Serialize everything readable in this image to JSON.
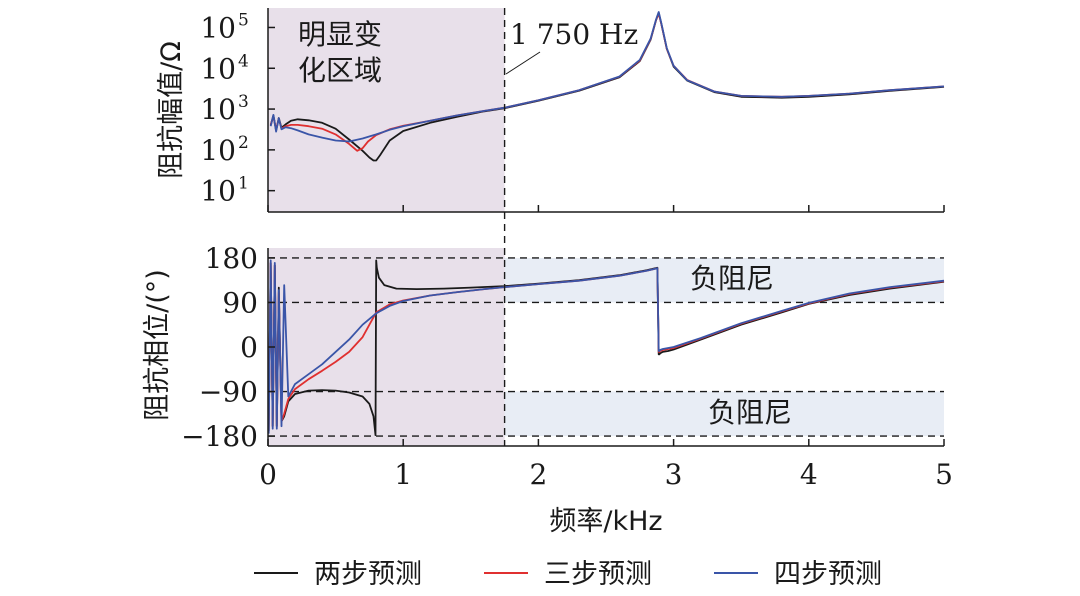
{
  "chart_data": [
    {
      "type": "line",
      "panel": "top",
      "ylabel": "阻抗幅值/Ω",
      "yscale": "log",
      "xlim": [
        0,
        5
      ],
      "ylim": [
        3,
        300000
      ],
      "ytick_values": [
        10,
        100,
        1000,
        10000,
        100000
      ],
      "ytick_labels": [
        [
          "10",
          "1"
        ],
        [
          "10",
          "2"
        ],
        [
          "10",
          "3"
        ],
        [
          "10",
          "4"
        ],
        [
          "10",
          "5"
        ]
      ],
      "shaded_region": {
        "x_range": [
          0,
          1.75
        ],
        "color": "#e8e0ea"
      },
      "region_label": [
        "明显变",
        "化区域"
      ],
      "vline": {
        "x": 1.75,
        "label": "1 750 Hz"
      },
      "series": [
        {
          "name": "两步预测",
          "color": "#1a1a1a",
          "x": [
            0.02,
            0.04,
            0.06,
            0.08,
            0.1,
            0.13,
            0.17,
            0.22,
            0.3,
            0.4,
            0.5,
            0.6,
            0.7,
            0.75,
            0.78,
            0.8,
            0.83,
            0.9,
            1.0,
            1.2,
            1.4,
            1.6,
            1.75,
            2.0,
            2.3,
            2.6,
            2.75,
            2.83,
            2.87,
            2.89,
            2.91,
            2.95,
            3.0,
            3.1,
            3.3,
            3.5,
            3.8,
            4.0,
            4.3,
            4.6,
            5.0
          ],
          "y": [
            400,
            700,
            300,
            600,
            350,
            420,
            520,
            560,
            530,
            460,
            330,
            180,
            95,
            65,
            55,
            55,
            75,
            170,
            290,
            460,
            650,
            880,
            1050,
            1600,
            2800,
            6000,
            15000,
            50000,
            150000,
            230000,
            120000,
            30000,
            11000,
            5000,
            2600,
            2000,
            1900,
            2000,
            2300,
            2800,
            3500
          ]
        },
        {
          "name": "三步预测",
          "color": "#e03030",
          "x": [
            0.02,
            0.04,
            0.06,
            0.08,
            0.1,
            0.13,
            0.17,
            0.22,
            0.3,
            0.4,
            0.5,
            0.6,
            0.66,
            0.7,
            0.74,
            0.8,
            0.9,
            1.0,
            1.2,
            1.4,
            1.6,
            1.75,
            2.0,
            2.3,
            2.6,
            2.75,
            2.83,
            2.87,
            2.89,
            2.91,
            2.95,
            3.0,
            3.1,
            3.3,
            3.5,
            3.8,
            4.0,
            4.3,
            4.6,
            5.0
          ],
          "y": [
            420,
            650,
            320,
            580,
            330,
            380,
            410,
            410,
            380,
            330,
            240,
            140,
            95,
            110,
            160,
            230,
            320,
            390,
            520,
            700,
            900,
            1080,
            1650,
            2900,
            6200,
            15500,
            52000,
            150000,
            220000,
            120000,
            30000,
            11500,
            5200,
            2700,
            2100,
            2000,
            2100,
            2400,
            2900,
            3600
          ]
        },
        {
          "name": "四步预测",
          "color": "#3a55a8",
          "x": [
            0.02,
            0.04,
            0.06,
            0.08,
            0.1,
            0.13,
            0.17,
            0.22,
            0.3,
            0.4,
            0.5,
            0.6,
            0.7,
            0.8,
            0.9,
            1.0,
            1.2,
            1.4,
            1.6,
            1.75,
            2.0,
            2.3,
            2.6,
            2.75,
            2.83,
            2.87,
            2.89,
            2.91,
            2.95,
            3.0,
            3.1,
            3.3,
            3.5,
            3.8,
            4.0,
            4.3,
            4.6,
            5.0
          ],
          "y": [
            380,
            720,
            280,
            600,
            320,
            360,
            340,
            300,
            240,
            200,
            170,
            160,
            190,
            240,
            310,
            380,
            520,
            700,
            900,
            1080,
            1650,
            2900,
            6300,
            16000,
            53000,
            155000,
            240000,
            125000,
            31000,
            11500,
            5100,
            2700,
            2100,
            2000,
            2100,
            2400,
            2900,
            3600
          ]
        }
      ]
    },
    {
      "type": "line",
      "panel": "bottom",
      "xlabel": "频率/kHz",
      "ylabel": "阻抗相位/(°)",
      "xlim": [
        0,
        5
      ],
      "ylim": [
        -200,
        200
      ],
      "xticks": [
        0,
        1,
        2,
        3,
        4,
        5
      ],
      "yticks": [
        180,
        90,
        0,
        -90,
        -180
      ],
      "ytick_labels": [
        "180",
        "90",
        "0",
        "−90",
        "−180"
      ],
      "shaded_region": {
        "x_range": [
          0,
          1.75
        ],
        "color": "#e8e0ea"
      },
      "negative_damping_bands": [
        {
          "y_range": [
            90,
            180
          ],
          "label": "负阻尼",
          "color": "#e8edf5"
        },
        {
          "y_range": [
            -180,
            -90
          ],
          "label": "负阻尼",
          "color": "#e8edf5"
        }
      ],
      "hlines": [
        180,
        90,
        -90,
        -180
      ],
      "vline": {
        "x": 1.75
      },
      "series": [
        {
          "name": "两步预测",
          "color": "#1a1a1a",
          "x": [
            0.005,
            0.02,
            0.035,
            0.05,
            0.065,
            0.08,
            0.1,
            0.12,
            0.15,
            0.2,
            0.3,
            0.4,
            0.5,
            0.6,
            0.7,
            0.75,
            0.78,
            0.795,
            0.8,
            0.805,
            0.82,
            0.86,
            0.95,
            1.1,
            1.3,
            1.5,
            1.75,
            2.0,
            2.3,
            2.6,
            2.8,
            2.88,
            2.89,
            2.895,
            2.9,
            2.92,
            2.96,
            3.0,
            3.2,
            3.5,
            3.8,
            4.0,
            4.3,
            4.6,
            5.0
          ],
          "y": [
            -170,
            170,
            -160,
            165,
            -160,
            120,
            -150,
            -140,
            -110,
            -95,
            -88,
            -87,
            -88,
            -92,
            -100,
            -115,
            -140,
            -178,
            175,
            160,
            140,
            125,
            118,
            117,
            118,
            120,
            123,
            128,
            135,
            145,
            155,
            160,
            -15,
            -15,
            -13,
            -10,
            -8,
            -5,
            15,
            45,
            70,
            87,
            105,
            118,
            132
          ]
        },
        {
          "name": "三步预测",
          "color": "#e03030",
          "x": [
            0.005,
            0.02,
            0.035,
            0.05,
            0.065,
            0.08,
            0.1,
            0.12,
            0.15,
            0.2,
            0.3,
            0.4,
            0.5,
            0.6,
            0.7,
            0.75,
            0.8,
            0.9,
            1.0,
            1.2,
            1.4,
            1.6,
            1.75,
            2.0,
            2.3,
            2.6,
            2.8,
            2.88,
            2.89,
            2.895,
            2.9,
            2.92,
            2.96,
            3.0,
            3.2,
            3.5,
            3.8,
            4.0,
            4.3,
            4.6,
            5.0
          ],
          "y": [
            -170,
            170,
            -160,
            165,
            -160,
            110,
            -150,
            -135,
            -105,
            -85,
            -65,
            -48,
            -30,
            -10,
            20,
            45,
            70,
            86,
            94,
            104,
            111,
            117,
            121,
            127,
            134,
            144,
            154,
            159,
            -10,
            -10,
            -8,
            -6,
            -4,
            -2,
            17,
            47,
            72,
            88,
            107,
            120,
            133
          ]
        },
        {
          "name": "四步预测",
          "color": "#3a55a8",
          "x": [
            0.005,
            0.02,
            0.035,
            0.05,
            0.065,
            0.08,
            0.1,
            0.12,
            0.15,
            0.2,
            0.3,
            0.4,
            0.5,
            0.6,
            0.7,
            0.8,
            0.9,
            1.0,
            1.2,
            1.4,
            1.6,
            1.75,
            2.0,
            2.3,
            2.6,
            2.8,
            2.88,
            2.89,
            2.895,
            2.9,
            2.92,
            2.96,
            3.0,
            3.2,
            3.5,
            3.8,
            4.0,
            4.3,
            4.6,
            5.0
          ],
          "y": [
            -175,
            175,
            -165,
            170,
            -165,
            115,
            -160,
            125,
            -100,
            -75,
            -55,
            -35,
            -10,
            15,
            45,
            68,
            83,
            93,
            104,
            111,
            117,
            121,
            127,
            134,
            144,
            154,
            159,
            -8,
            -8,
            -6,
            -4,
            -2,
            0,
            18,
            48,
            73,
            89,
            108,
            121,
            134
          ]
        }
      ]
    }
  ],
  "legend": {
    "items": [
      {
        "label": "两步预测",
        "color": "#1a1a1a"
      },
      {
        "label": "三步预测",
        "color": "#e03030"
      },
      {
        "label": "四步预测",
        "color": "#3a55a8"
      }
    ]
  }
}
